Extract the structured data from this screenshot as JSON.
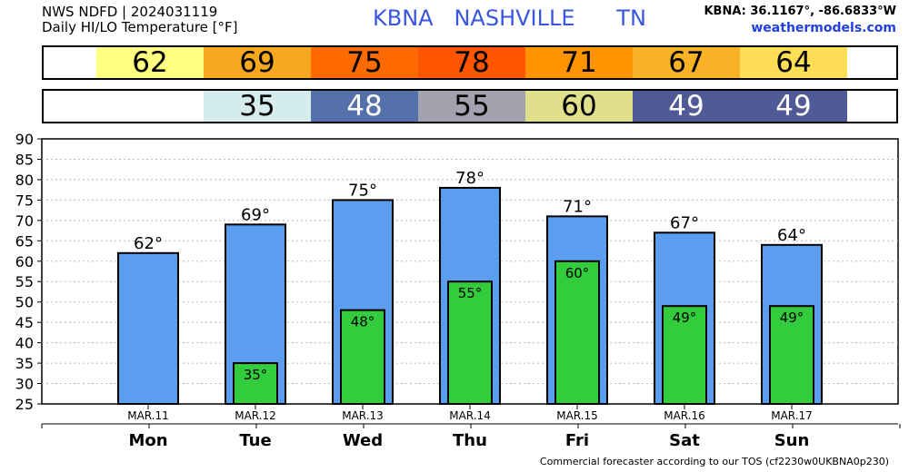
{
  "header": {
    "line1": "NWS NDFD | 2024031119",
    "line2": "Daily HI/LO Temperature [°F]",
    "station": "KBNA   NASHVILLE      TN",
    "coords": "KBNA: 36.1167°, -86.6833°W",
    "site": "weathermodels.com"
  },
  "footer": "Commercial forecaster according to our TOS (cf2230w0UKBNA0p230)",
  "colors": {
    "hi_bar": "#5b9ef0",
    "lo_bar": "#33cc3d",
    "hi_cells": [
      "#ffff80",
      "#f7a81f",
      "#ff6a00",
      "#ff5500",
      "#ff9400",
      "#f7b225",
      "#ffdd55"
    ],
    "lo_cells": [
      null,
      "#d4ecec",
      "#5571ac",
      "#a3a3b0",
      "#e0e08c",
      "#4f5a96",
      "#4f5a96"
    ],
    "lo_text": [
      "#000",
      "#000",
      "#ffffff",
      "#000",
      "#000",
      "#ffffff",
      "#ffffff"
    ]
  },
  "chart_data": {
    "type": "bar",
    "categories": [
      "Mon",
      "Tue",
      "Wed",
      "Thu",
      "Fri",
      "Sat",
      "Sun"
    ],
    "dates": [
      "MAR.11",
      "MAR.12",
      "MAR.13",
      "MAR.14",
      "MAR.15",
      "MAR.16",
      "MAR.17"
    ],
    "series": [
      {
        "values": [
          62,
          69,
          75,
          78,
          71,
          67,
          64
        ]
      },
      {
        "values": [
          null,
          35,
          48,
          55,
          60,
          49,
          49
        ]
      }
    ],
    "hi_labels": [
      "62°",
      "69°",
      "75°",
      "78°",
      "71°",
      "67°",
      "64°"
    ],
    "lo_labels": [
      "",
      "35°",
      "48°",
      "55°",
      "60°",
      "49°",
      "49°"
    ],
    "hi_strip": [
      "62",
      "69",
      "75",
      "78",
      "71",
      "67",
      "64"
    ],
    "lo_strip": [
      "",
      "35",
      "48",
      "55",
      "60",
      "49",
      "49"
    ],
    "yticks": [
      "25",
      "30",
      "35",
      "40",
      "45",
      "50",
      "55",
      "60",
      "65",
      "70",
      "75",
      "80",
      "85",
      "90"
    ],
    "ylim": [
      25,
      90
    ],
    "grid": true
  }
}
